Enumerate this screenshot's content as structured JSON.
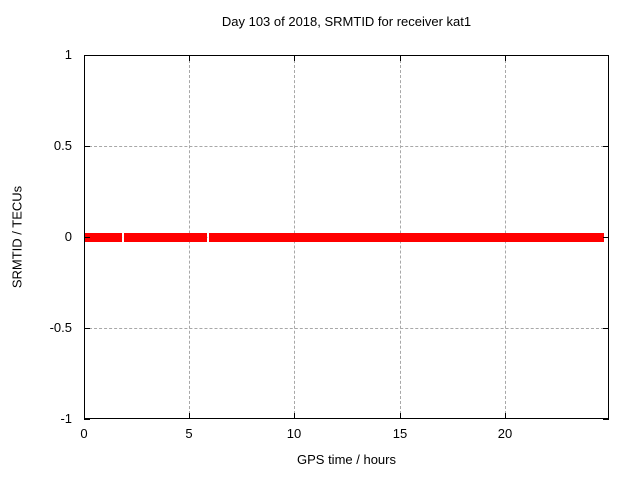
{
  "chart_data": {
    "type": "line",
    "title": "Day 103 of 2018, SRMTID for receiver kat1",
    "xlabel": "GPS time / hours",
    "ylabel": "SRMTID / TECUs",
    "xlim": [
      0,
      24.95
    ],
    "ylim": [
      -1,
      1
    ],
    "xticks": [
      0,
      5,
      10,
      15,
      20
    ],
    "yticks": [
      -1,
      -0.5,
      0,
      0.5,
      1
    ],
    "grid": true,
    "grid_color": "#a8a8a8",
    "border_color": "#000000",
    "background": "#ffffff",
    "legend_position": "none",
    "series": [
      {
        "name": "SRMTID",
        "color": "#ff0000",
        "line_width": 9,
        "y_value": 0,
        "x_segments": [
          [
            0,
            1.8
          ],
          [
            1.92,
            5.85
          ],
          [
            5.95,
            24.7
          ]
        ],
        "note": "constant zero line with two small data gaps near 1.8h and 5.9h"
      }
    ]
  }
}
